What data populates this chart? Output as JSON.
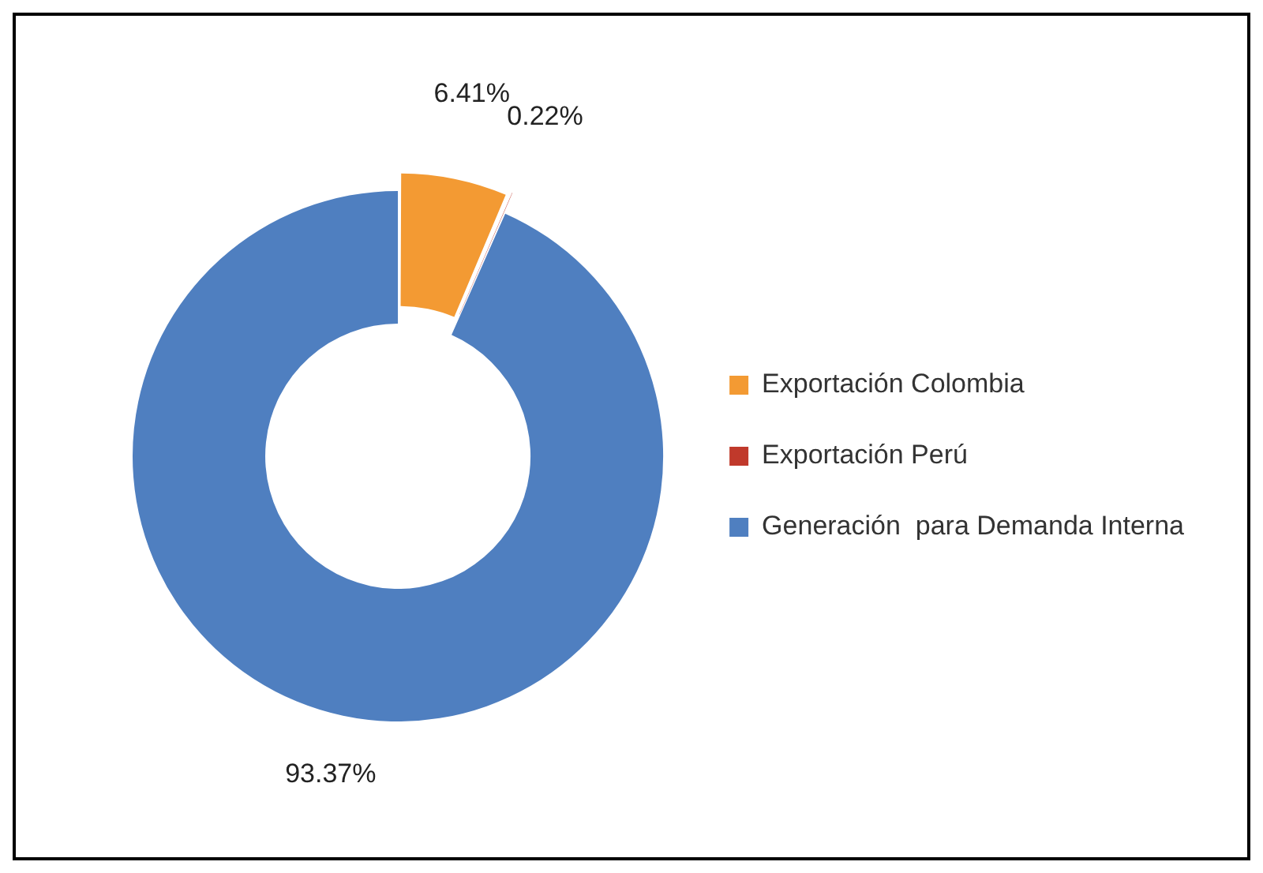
{
  "chart_data": {
    "type": "donut",
    "categories": [
      "Exportación Colombia",
      "Exportación Perú",
      "Generación  para Demanda Interna"
    ],
    "values": [
      6.41,
      0.22,
      93.37
    ],
    "colors": [
      "#f39a33",
      "#c0392b",
      "#4f7fc0"
    ],
    "value_labels": [
      "6.41%",
      "0.22%",
      "93.37%"
    ],
    "legend": "right"
  }
}
